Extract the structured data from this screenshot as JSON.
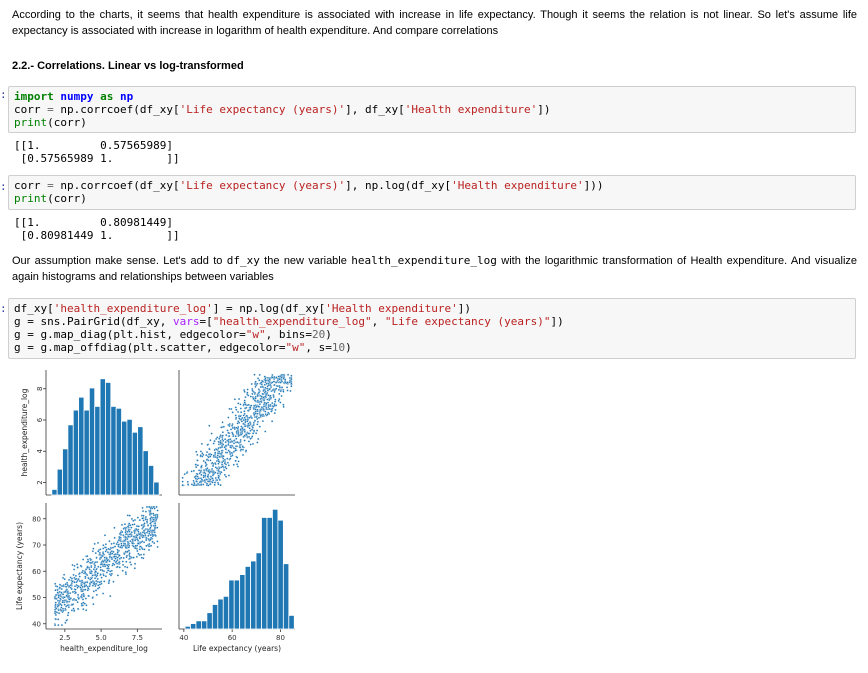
{
  "intro_text": "According to the charts, it seems that health expenditure is associated with increase in life expectancy. Though it seems the relation is not linear. So let's assume life expectancy is associated with increase in logarithm of health expenditure. And compare correlations",
  "section_heading": "2.2.- Correlations. Linear vs log-transformed",
  "cell1": {
    "prompt": ":",
    "line1": {
      "kw1": "import",
      "mod": "numpy",
      "kw2": "as",
      "alias": "np"
    },
    "line2": {
      "a": "corr",
      "b": "=",
      "c": "np.corrcoef(df_xy[",
      "s1": "'Life expectancy (years)'",
      "d": "], df_xy[",
      "s2": "'Health expenditure'",
      "e": "])"
    },
    "line3": {
      "fn": "print",
      "arg": "(corr)"
    },
    "output": "[[1.         0.57565989]\n [0.57565989 1.        ]]"
  },
  "cell2": {
    "prompt": ":",
    "line1": {
      "a": "corr",
      "b": "=",
      "c": "np.corrcoef(df_xy[",
      "s1": "'Life expectancy (years)'",
      "d": "], np.log(df_xy[",
      "s2": "'Health expenditure'",
      "e": "]))"
    },
    "line2": {
      "fn": "print",
      "arg": "(corr)"
    },
    "output": "[[1.         0.80981449]\n [0.80981449 1.        ]]"
  },
  "assumption": {
    "t1": "Our assumption make sense. Let's add to ",
    "c1": "df_xy",
    "t2": " the new variable ",
    "c2": "health_expenditure_log",
    "t3": " with the logarithmic transformation of Health expenditure. And visualize again histograms and relationships between variables"
  },
  "cell3": {
    "prompt": ":",
    "l1": {
      "a": "df_xy[",
      "s1": "'health_expenditure_log'",
      "b": "] = np.log(df_xy[",
      "s2": "'Health expenditure'",
      "c": "])"
    },
    "l2": {
      "a": "g = sns.PairGrid(df_xy, ",
      "kw": "vars",
      "b": "=[",
      "s1": "\"health_expenditure_log\"",
      "c": ", ",
      "s2": "\"Life expectancy (years)\"",
      "d": "])"
    },
    "l3": {
      "a": "g = g.map_diag(plt.hist, edgecolor=",
      "s1": "\"w\"",
      "b": ", bins=",
      "n": "20",
      "c": ")"
    },
    "l4": {
      "a": "g = g.map_offdiag(plt.scatter, edgecolor=",
      "s1": "\"w\"",
      "b": ", s=",
      "n": "10",
      "c": ")"
    }
  },
  "chart_data": {
    "type": "pairgrid",
    "color": "#1f77b4",
    "variables": [
      "health_expenditure_log",
      "Life expectancy (years)"
    ],
    "axes": {
      "health_expenditure_log": {
        "label": "health_expenditure_log",
        "range": [
          1.2,
          9.2
        ],
        "ticks": [
          2,
          4,
          6,
          8
        ],
        "bottom_ticks": [
          "2.5",
          "5.0",
          "7.5"
        ]
      },
      "life_expectancy": {
        "label": "Life expectancy (years)",
        "range": [
          38,
          86
        ],
        "ticks": [
          40,
          50,
          60,
          70,
          80
        ],
        "bottom_ticks": [
          "40",
          "60",
          "80"
        ]
      }
    },
    "hist_health_log": {
      "bin_start": 1.6,
      "bin_width": 0.37,
      "counts": [
        3,
        14,
        25,
        38,
        46,
        53,
        46,
        58,
        48,
        63,
        61,
        48,
        47,
        40,
        41,
        34,
        37,
        24,
        16,
        7
      ]
    },
    "hist_life": {
      "bin_start": 40.5,
      "bin_width": 2.26,
      "counts": [
        1,
        2,
        3,
        3,
        6,
        9,
        11,
        12,
        18,
        18,
        20,
        23,
        25,
        28,
        41,
        41,
        44,
        40,
        24,
        5
      ]
    },
    "scatter_points": 900
  }
}
